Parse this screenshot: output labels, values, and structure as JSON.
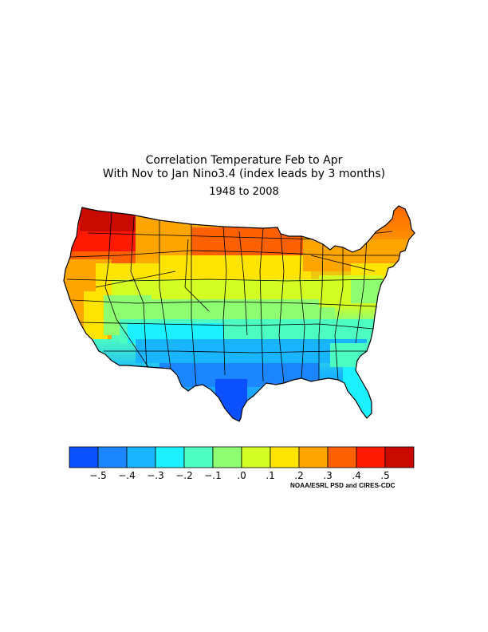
{
  "title": {
    "line1": "Correlation Temperature Feb to Apr",
    "line2": "With Nov to Jan Nino3.4 (index leads by 3 months)",
    "period": "1948 to 2008"
  },
  "legend": {
    "colors": [
      "#0a50ff",
      "#1b86ff",
      "#19b6ff",
      "#1cf2ff",
      "#4dfcc0",
      "#8efd72",
      "#d4fd23",
      "#fee400",
      "#fea500",
      "#fd6000",
      "#fe1a00",
      "#c80a00"
    ],
    "tick_labels": [
      "−.5",
      "−.4",
      "−.3",
      "−.2",
      "−.1",
      ".0",
      ".1",
      ".2",
      ".3",
      ".4",
      ".5"
    ]
  },
  "credit": "NOAA/ESRL PSD and CIRES-CDC"
}
